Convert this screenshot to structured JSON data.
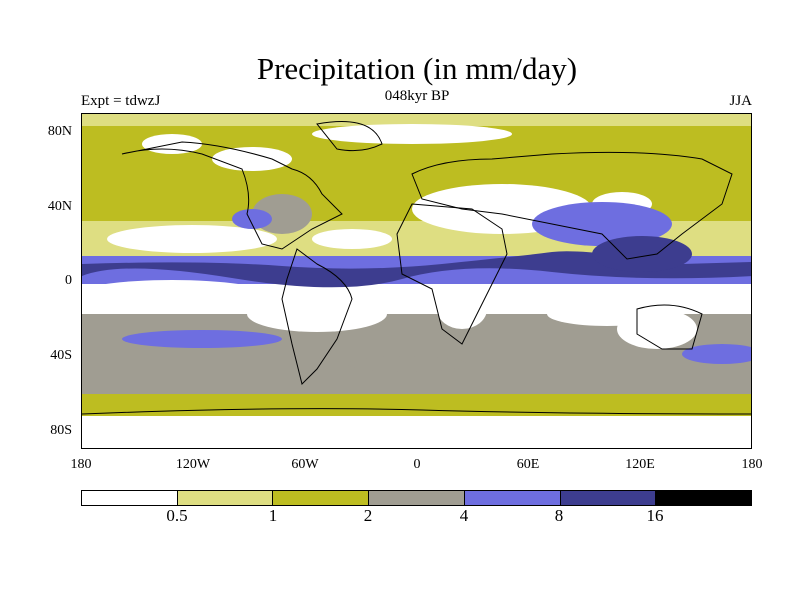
{
  "header": {
    "title": "Precipitation (in mm/day)",
    "left": "Expt = tdwzJ",
    "center": "048kyr BP",
    "right": "JJA"
  },
  "axes": {
    "lat_labels": [
      "80N",
      "40N",
      "0",
      "40S",
      "80S"
    ],
    "lon_labels": [
      "180",
      "120W",
      "60W",
      "0",
      "60E",
      "120E",
      "180"
    ]
  },
  "colorbar": {
    "labels": [
      "0.5",
      "1",
      "2",
      "4",
      "8",
      "16"
    ],
    "colors": [
      "#ffffff",
      "#dede82",
      "#bdbd21",
      "#a09d92",
      "#6e6ee0",
      "#3d3d8f",
      "#000000"
    ]
  }
}
